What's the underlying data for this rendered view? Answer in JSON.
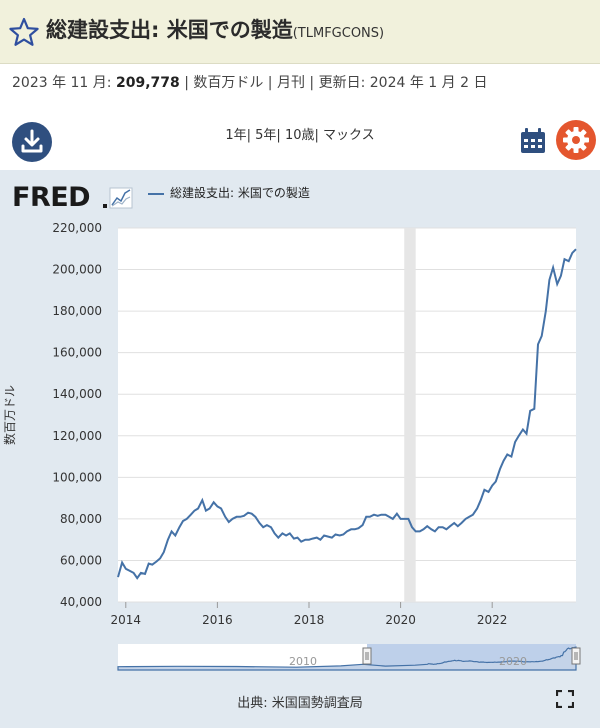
{
  "header": {
    "title": "総建設支出: 米国での製造",
    "series_id": "(TLMFGCONS)"
  },
  "observation": {
    "period": "2023 年 11 月:",
    "value": "209,778",
    "details": "| 数百万ドル | 月刊 | 更新日: 2024 年 1 月 2 日"
  },
  "toolbar": {
    "ranges": "1年| 5年| 10歳| マックス"
  },
  "legend": {
    "label": "総建設支出: 米国での製造",
    "color": "#4572a7"
  },
  "source": "出典: 米国国勢調査局",
  "navigator": {
    "labels": [
      "2010",
      "2020"
    ]
  },
  "chart_data": {
    "type": "line",
    "ylabel": "数百万ドル",
    "ylim": [
      40000,
      220000
    ],
    "yticks": [
      "40,000",
      "60,000",
      "80,000",
      "100,000",
      "120,000",
      "140,000",
      "160,000",
      "180,000",
      "200,000",
      "220,000"
    ],
    "xlim": [
      2013.83,
      2023.83
    ],
    "xticks": [
      "2014",
      "2016",
      "2018",
      "2020",
      "2022"
    ],
    "recession": [
      2020.08,
      2020.33
    ],
    "series": [
      {
        "values": [
          [
            2013.83,
            52000
          ],
          [
            2013.92,
            59000
          ],
          [
            2014.0,
            56000
          ],
          [
            2014.17,
            54000
          ],
          [
            2014.25,
            51500
          ],
          [
            2014.33,
            54000
          ],
          [
            2014.42,
            53500
          ],
          [
            2014.5,
            58500
          ],
          [
            2014.58,
            58000
          ],
          [
            2014.67,
            59500
          ],
          [
            2014.75,
            61000
          ],
          [
            2014.83,
            64000
          ],
          [
            2014.92,
            70000
          ],
          [
            2015.0,
            74000
          ],
          [
            2015.08,
            72000
          ],
          [
            2015.17,
            76000
          ],
          [
            2015.25,
            79000
          ],
          [
            2015.33,
            80000
          ],
          [
            2015.42,
            82000
          ],
          [
            2015.5,
            84000
          ],
          [
            2015.58,
            85000
          ],
          [
            2015.67,
            89000
          ],
          [
            2015.75,
            84000
          ],
          [
            2015.83,
            85000
          ],
          [
            2015.92,
            88000
          ],
          [
            2016.0,
            86000
          ],
          [
            2016.08,
            85000
          ],
          [
            2016.17,
            81000
          ],
          [
            2016.25,
            78500
          ],
          [
            2016.33,
            80000
          ],
          [
            2016.42,
            81000
          ],
          [
            2016.5,
            81000
          ],
          [
            2016.58,
            81500
          ],
          [
            2016.67,
            83000
          ],
          [
            2016.75,
            82500
          ],
          [
            2016.83,
            81000
          ],
          [
            2016.92,
            78000
          ],
          [
            2017.0,
            76000
          ],
          [
            2017.08,
            77000
          ],
          [
            2017.17,
            76000
          ],
          [
            2017.25,
            73000
          ],
          [
            2017.33,
            71000
          ],
          [
            2017.42,
            73000
          ],
          [
            2017.5,
            72000
          ],
          [
            2017.58,
            73000
          ],
          [
            2017.67,
            70500
          ],
          [
            2017.75,
            71000
          ],
          [
            2017.83,
            69000
          ],
          [
            2017.92,
            70000
          ],
          [
            2018.0,
            70000
          ],
          [
            2018.08,
            70500
          ],
          [
            2018.17,
            71000
          ],
          [
            2018.25,
            70000
          ],
          [
            2018.33,
            72000
          ],
          [
            2018.42,
            71500
          ],
          [
            2018.5,
            71000
          ],
          [
            2018.58,
            72500
          ],
          [
            2018.67,
            72000
          ],
          [
            2018.75,
            72500
          ],
          [
            2018.83,
            74000
          ],
          [
            2018.92,
            75000
          ],
          [
            2019.0,
            75000
          ],
          [
            2019.08,
            75500
          ],
          [
            2019.17,
            77000
          ],
          [
            2019.25,
            81000
          ],
          [
            2019.33,
            81000
          ],
          [
            2019.42,
            82000
          ],
          [
            2019.5,
            81500
          ],
          [
            2019.58,
            82000
          ],
          [
            2019.67,
            82000
          ],
          [
            2019.75,
            81000
          ],
          [
            2019.83,
            80000
          ],
          [
            2019.92,
            82500
          ],
          [
            2020.0,
            80000
          ],
          [
            2020.08,
            80000
          ],
          [
            2020.17,
            80000
          ],
          [
            2020.25,
            76000
          ],
          [
            2020.33,
            74000
          ],
          [
            2020.42,
            74000
          ],
          [
            2020.5,
            75000
          ],
          [
            2020.58,
            76500
          ],
          [
            2020.67,
            75000
          ],
          [
            2020.75,
            74000
          ],
          [
            2020.83,
            76000
          ],
          [
            2020.92,
            76000
          ],
          [
            2021.0,
            75000
          ],
          [
            2021.08,
            76500
          ],
          [
            2021.17,
            78000
          ],
          [
            2021.25,
            76500
          ],
          [
            2021.33,
            78000
          ],
          [
            2021.42,
            80000
          ],
          [
            2021.5,
            81000
          ],
          [
            2021.58,
            82000
          ],
          [
            2021.67,
            85000
          ],
          [
            2021.75,
            89000
          ],
          [
            2021.83,
            94000
          ],
          [
            2021.92,
            93000
          ],
          [
            2022.0,
            96000
          ],
          [
            2022.08,
            98000
          ],
          [
            2022.17,
            104000
          ],
          [
            2022.25,
            108000
          ],
          [
            2022.33,
            111000
          ],
          [
            2022.42,
            110000
          ],
          [
            2022.5,
            117000
          ],
          [
            2022.58,
            120000
          ],
          [
            2022.67,
            123000
          ],
          [
            2022.75,
            121000
          ],
          [
            2022.83,
            132000
          ],
          [
            2022.92,
            133000
          ],
          [
            2023.0,
            164000
          ],
          [
            2023.08,
            168000
          ],
          [
            2023.17,
            180000
          ],
          [
            2023.25,
            195000
          ],
          [
            2023.33,
            201000
          ],
          [
            2023.42,
            193000
          ],
          [
            2023.5,
            197000
          ],
          [
            2023.58,
            205000
          ],
          [
            2023.67,
            204000
          ],
          [
            2023.75,
            208000
          ],
          [
            2023.83,
            209778
          ]
        ]
      }
    ]
  }
}
